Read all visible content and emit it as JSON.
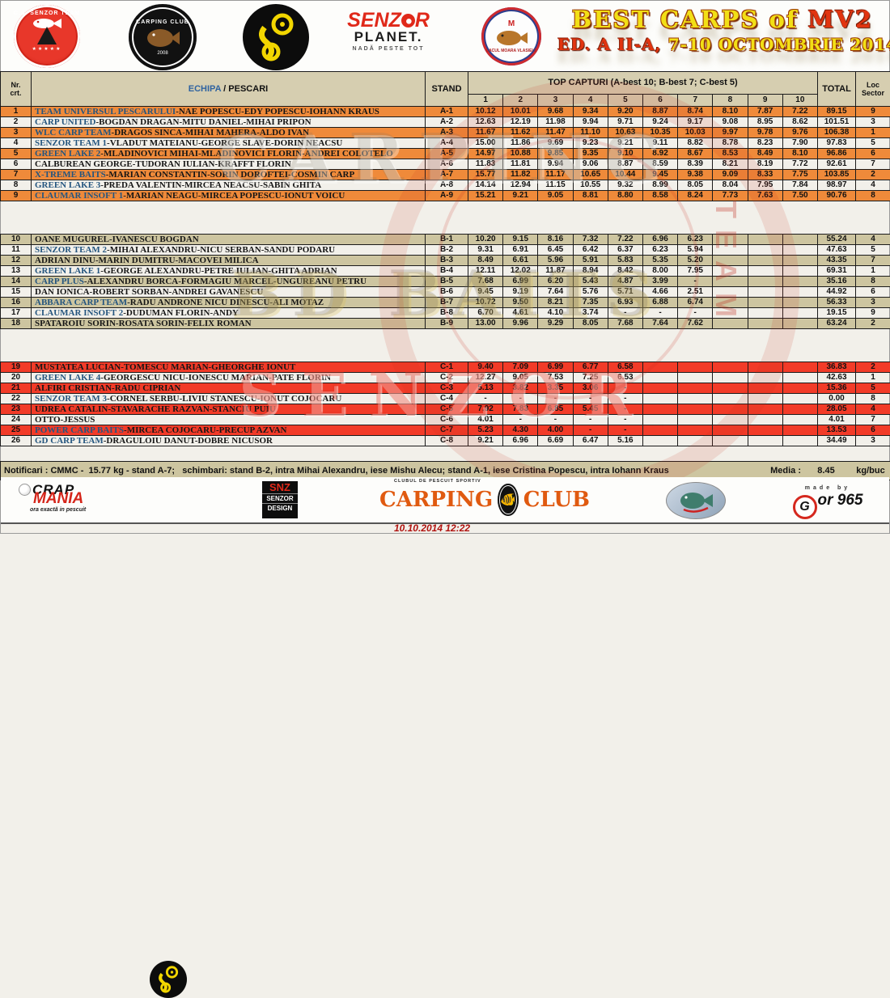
{
  "header": {
    "title_line1_main": "BEST CARPS of ",
    "title_line1_accent": "MV2",
    "title_line2_accent": "ED. A II-A, ",
    "title_line2_main": "7-10 OCTOMBRIE 2014",
    "badges": {
      "senzor_team": {
        "arc_text": "C.S. SENZOR TEAM",
        "stars": "★★★★★"
      },
      "carping_club": {
        "arc_text": "CARPING CLUB",
        "year": "2008"
      },
      "senzor_planet": {
        "word_start": "SENZ",
        "word_end": "R",
        "line2": "PLANET.",
        "tagline": "NADĂ PESTE TOT"
      },
      "moara_vlasiei": {
        "crest": "M",
        "label": "LACUL MOARA VLASIEI 2"
      }
    }
  },
  "table": {
    "col_nr_line1": "Nr.",
    "col_nr_line2": "crt.",
    "col_echipa": "ECHIPA",
    "col_pescari": " / PESCARI",
    "col_stand": "STAND",
    "col_top_capturi": "TOP CAPTURI (A-best 10; B-best 7; C-best 5)",
    "capture_cols": [
      "1",
      "2",
      "3",
      "4",
      "5",
      "6",
      "7",
      "8",
      "9",
      "10"
    ],
    "col_total": "TOTAL",
    "col_loc_line1": "Loc",
    "col_loc_line2": "Sector",
    "sections": [
      {
        "id": "A",
        "rows": [
          {
            "nr": "1",
            "team": "TEAM UNIVERSUL PESCARULUI",
            "members": "-NAE POPESCU-EDY POPESCU-IOHANN KRAUS",
            "stand": "A-1",
            "captures": [
              "10.12",
              "10.01",
              "9.68",
              "9.34",
              "9.20",
              "8.87",
              "8.74",
              "8.10",
              "7.87",
              "7.22"
            ],
            "total": "89.15",
            "loc": "9"
          },
          {
            "nr": "2",
            "team": "CARP UNITED",
            "members": "-BOGDAN DRAGAN-MITU DANIEL-MIHAI PRIPON",
            "stand": "A-2",
            "captures": [
              "12.63",
              "12.19",
              "11.98",
              "9.94",
              "9.71",
              "9.24",
              "9.17",
              "9.08",
              "8.95",
              "8.62"
            ],
            "total": "101.51",
            "loc": "3"
          },
          {
            "nr": "3",
            "team": "WLC CARP TEAM",
            "members": "-DRAGOS SINCA-MIHAI MAHERA-ALDO IVAN",
            "stand": "A-3",
            "captures": [
              "11.67",
              "11.62",
              "11.47",
              "11.10",
              "10.63",
              "10.35",
              "10.03",
              "9.97",
              "9.78",
              "9.76"
            ],
            "total": "106.38",
            "loc": "1"
          },
          {
            "nr": "4",
            "team": "SENZOR TEAM 1",
            "members": "-VLADUT MATEIANU-GEORGE SLAVE-DORIN NEACSU",
            "stand": "A-4",
            "captures": [
              "15.00",
              "11.86",
              "9.69",
              "9.23",
              "9.21",
              "9.11",
              "8.82",
              "8.78",
              "8.23",
              "7.90"
            ],
            "total": "97.83",
            "loc": "5"
          },
          {
            "nr": "5",
            "team": "GREEN LAKE 2",
            "members": "-MLADINOVICI MIHAI-MLADINOVICI FLORIN-ANDREI COLOTELO",
            "stand": "A-5",
            "captures": [
              "14.97",
              "10.88",
              "9.85",
              "9.35",
              "9.10",
              "8.92",
              "8.67",
              "8.53",
              "8.49",
              "8.10"
            ],
            "total": "96.86",
            "loc": "6"
          },
          {
            "nr": "6",
            "team": "",
            "members": "CALBUREAN GEORGE-TUDORAN IULIAN-KRAFFT FLORIN",
            "stand": "A-6",
            "captures": [
              "11.83",
              "11.81",
              "9.94",
              "9.06",
              "8.87",
              "8.59",
              "8.39",
              "8.21",
              "8.19",
              "7.72"
            ],
            "total": "92.61",
            "loc": "7"
          },
          {
            "nr": "7",
            "team": "X-TREME BAITS",
            "members": "-MARIAN CONSTANTIN-SORIN DOROFTEI-COSMIN CARP",
            "stand": "A-7",
            "captures": [
              "15.77",
              "11.82",
              "11.17",
              "10.65",
              "10.44",
              "9.45",
              "9.38",
              "9.09",
              "8.33",
              "7.75"
            ],
            "total": "103.85",
            "loc": "2"
          },
          {
            "nr": "8",
            "team": "GREEN LAKE 3",
            "members": "-PREDA VALENTIN-MIRCEA NEACSU-SABIN GHITA",
            "stand": "A-8",
            "captures": [
              "14.14",
              "12.94",
              "11.15",
              "10.55",
              "9.32",
              "8.99",
              "8.05",
              "8.04",
              "7.95",
              "7.84"
            ],
            "total": "98.97",
            "loc": "4"
          },
          {
            "nr": "9",
            "team": "CLAUMAR INSOFT 1",
            "members": "-MARIAN NEAGU-MIRCEA POPESCU-IONUT VOICU",
            "stand": "A-9",
            "captures": [
              "15.21",
              "9.21",
              "9.05",
              "8.81",
              "8.80",
              "8.58",
              "8.24",
              "7.73",
              "7.63",
              "7.50"
            ],
            "total": "90.76",
            "loc": "8"
          }
        ]
      },
      {
        "id": "B",
        "rows": [
          {
            "nr": "10",
            "team": "",
            "members": "OANE MUGUREL-IVANESCU BOGDAN",
            "stand": "B-1",
            "captures": [
              "10.20",
              "9.15",
              "8.16",
              "7.32",
              "7.22",
              "6.96",
              "6.23",
              "",
              "",
              ""
            ],
            "total": "55.24",
            "loc": "4"
          },
          {
            "nr": "11",
            "team": "SENZOR TEAM 2",
            "members": "-MIHAI ALEXANDRU-NICU SERBAN-SANDU PODARU",
            "stand": "B-2",
            "captures": [
              "9.31",
              "6.91",
              "6.45",
              "6.42",
              "6.37",
              "6.23",
              "5.94",
              "",
              "",
              ""
            ],
            "total": "47.63",
            "loc": "5"
          },
          {
            "nr": "12",
            "team": "",
            "members": "ADRIAN DINU-MARIN DUMITRU-MACOVEI  MILICA",
            "stand": "B-3",
            "captures": [
              "8.49",
              "6.61",
              "5.96",
              "5.91",
              "5.83",
              "5.35",
              "5.20",
              "",
              "",
              ""
            ],
            "total": "43.35",
            "loc": "7"
          },
          {
            "nr": "13",
            "team": "GREEN LAKE 1",
            "members": "-GEORGE ALEXANDRU-PETRE IULIAN-GHITA ADRIAN",
            "stand": "B-4",
            "captures": [
              "12.11",
              "12.02",
              "11.87",
              "8.94",
              "8.42",
              "8.00",
              "7.95",
              "",
              "",
              ""
            ],
            "total": "69.31",
            "loc": "1"
          },
          {
            "nr": "14",
            "team": "CARP PLUS",
            "members": "-ALEXANDRU BORCA-FORMAGIU MARCEL-UNGUREANU PETRU",
            "stand": "B-5",
            "captures": [
              "7.68",
              "6.99",
              "6.20",
              "5.43",
              "4.87",
              "3.99",
              "-",
              "",
              "",
              ""
            ],
            "total": "35.16",
            "loc": "8"
          },
          {
            "nr": "15",
            "team": "",
            "members": "DAN IONICA-ROBERT SORBAN-ANDREI GAVANESCU",
            "stand": "B-6",
            "captures": [
              "9.45",
              "9.19",
              "7.64",
              "5.76",
              "5.71",
              "4.66",
              "2.51",
              "",
              "",
              ""
            ],
            "total": "44.92",
            "loc": "6"
          },
          {
            "nr": "16",
            "team": "ABBARA CARP TEAM",
            "members": "-RADU ANDRONE NICU DINESCU-ALI MOTAZ",
            "stand": "B-7",
            "captures": [
              "10.72",
              "9.50",
              "8.21",
              "7.35",
              "6.93",
              "6.88",
              "6.74",
              "",
              "",
              ""
            ],
            "total": "56.33",
            "loc": "3"
          },
          {
            "nr": "17",
            "team": "CLAUMAR INSOFT 2",
            "members": "-DUDUMAN FLORIN-ANDY",
            "stand": "B-8",
            "captures": [
              "6.70",
              "4.61",
              "4.10",
              "3.74",
              "-",
              "-",
              "-",
              "",
              "",
              ""
            ],
            "total": "19.15",
            "loc": "9"
          },
          {
            "nr": "18",
            "team": "",
            "members": "SPATAROIU SORIN-ROSATA SORIN-FELIX ROMAN",
            "stand": "B-9",
            "captures": [
              "13.00",
              "9.96",
              "9.29",
              "8.05",
              "7.68",
              "7.64",
              "7.62",
              "",
              "",
              ""
            ],
            "total": "63.24",
            "loc": "2"
          }
        ]
      },
      {
        "id": "C",
        "rows": [
          {
            "nr": "19",
            "team": "",
            "members": "MUSTATEA LUCIAN-TOMESCU MARIAN-GHEORGHE IONUT",
            "stand": "C-1",
            "captures": [
              "9.40",
              "7.09",
              "6.99",
              "6.77",
              "6.58",
              "",
              "",
              "",
              "",
              ""
            ],
            "total": "36.83",
            "loc": "2"
          },
          {
            "nr": "20",
            "team": "GREEN LAKE 4",
            "members": "-GEORGESCU NICU-IONESCU MARIAN-PATE FLORIN",
            "stand": "C-2",
            "captures": [
              "12.27",
              "9.05",
              "7.53",
              "7.25",
              "6.53",
              "",
              "",
              "",
              "",
              ""
            ],
            "total": "42.63",
            "loc": "1"
          },
          {
            "nr": "21",
            "team": "",
            "members": "ALFIRI CRISTIAN-RADU CIPRIAN",
            "stand": "C-3",
            "captures": [
              "5.13",
              "3.82",
              "3.35",
              "3.06",
              "-",
              "",
              "",
              "",
              "",
              ""
            ],
            "total": "15.36",
            "loc": "5"
          },
          {
            "nr": "22",
            "team": "SENZOR TEAM 3",
            "members": "-CORNEL SERBU-LIVIU STANESCU-IONUT COJOCARU",
            "stand": "C-4",
            "captures": [
              "-",
              "-",
              "-",
              "-",
              "-",
              "",
              "",
              "",
              "",
              ""
            ],
            "total": "0.00",
            "loc": "8"
          },
          {
            "nr": "23",
            "team": "",
            "members": "UDREA CATALIN-STAVARACHE RAZVAN-STANCIU PUIU",
            "stand": "C-5",
            "captures": [
              "7.92",
              "7.83",
              "6.85",
              "5.45",
              "-",
              "",
              "",
              "",
              "",
              ""
            ],
            "total": "28.05",
            "loc": "4"
          },
          {
            "nr": "24",
            "team": "",
            "members": "OTTO-JESSUS",
            "stand": "C-6",
            "captures": [
              "4.01",
              "-",
              "-",
              "-",
              "-",
              "",
              "",
              "",
              "",
              ""
            ],
            "total": "4.01",
            "loc": "7"
          },
          {
            "nr": "25",
            "team": "POWER CARP BAITS",
            "members": "-MIRCEA COJOCARU-PRECUP AZVAN",
            "stand": "C-7",
            "captures": [
              "5.23",
              "4.30",
              "4.00",
              "-",
              "-",
              "",
              "",
              "",
              "",
              ""
            ],
            "total": "13.53",
            "loc": "6"
          },
          {
            "nr": "26",
            "team": "GD CARP TEAM",
            "members": "-DRAGULOIU DANUT-DOBRE NICUSOR",
            "stand": "C-8",
            "captures": [
              "9.21",
              "6.96",
              "6.69",
              "6.47",
              "5.16",
              "",
              "",
              "",
              "",
              ""
            ],
            "total": "34.49",
            "loc": "3"
          }
        ]
      }
    ]
  },
  "notification": {
    "left": "Notificari : CMMC -  15.77 kg - stand A-7;   schimbari: stand B-2, intra Mihai Alexandru, iese Mishu Alecu; stand A-1, iese Cristina Popescu, intra Iohann Kraus",
    "media_label": "Media :",
    "media_value": "8.45",
    "media_unit": "kg/buc"
  },
  "watermarks": {
    "section_a": "CARPING",
    "section_b": "BD BAITS",
    "section_c": "SENZOR",
    "stamp_side": "TEAM"
  },
  "footer": {
    "crap_mania": {
      "line1": "CRAP",
      "line2": "MANIA",
      "tagline": "ora exactă in pescuit"
    },
    "snz_design": {
      "line1": "SNZ",
      "line2": "SENZOR",
      "line3": "DESIGN"
    },
    "carping_club": {
      "top": "CLUBUL DE PESCUIT SPORTIV",
      "word_left": "CARPING",
      "word_right": "CLUB"
    },
    "gor965": {
      "made": "made by",
      "g": "G",
      "rest": "or 965"
    },
    "timestamp": "10.10.2014 12:22"
  }
}
